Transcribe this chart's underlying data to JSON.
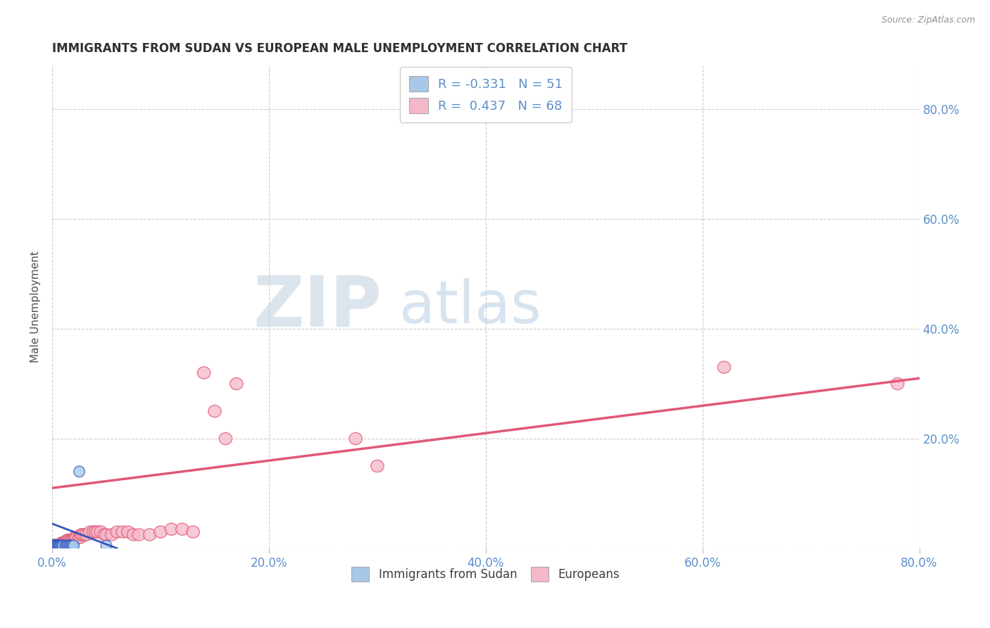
{
  "title": "IMMIGRANTS FROM SUDAN VS EUROPEAN MALE UNEMPLOYMENT CORRELATION CHART",
  "source": "Source: ZipAtlas.com",
  "ylabel": "Male Unemployment",
  "watermark_zip": "ZIP",
  "watermark_atlas": "atlas",
  "xlim": [
    0,
    0.8
  ],
  "ylim": [
    0,
    0.88
  ],
  "xticks": [
    0.0,
    0.2,
    0.4,
    0.6,
    0.8
  ],
  "yticks": [
    0.2,
    0.4,
    0.6,
    0.8
  ],
  "xtick_labels": [
    "0.0%",
    "20.0%",
    "40.0%",
    "60.0%",
    "80.0%"
  ],
  "right_tick_labels": [
    "20.0%",
    "40.0%",
    "60.0%",
    "80.0%"
  ],
  "legend1_R": "-0.331",
  "legend1_N": "51",
  "legend2_R": "0.437",
  "legend2_N": "68",
  "blue_color": "#A8C8E8",
  "pink_color": "#F5B8C8",
  "blue_line_color": "#3355BB",
  "pink_line_color": "#E05878",
  "tick_color": "#5B8FCC",
  "title_color": "#303030",
  "source_color": "#909090",
  "sudan_x": [
    0.001,
    0.001,
    0.001,
    0.001,
    0.001,
    0.001,
    0.001,
    0.001,
    0.001,
    0.001,
    0.002,
    0.002,
    0.002,
    0.002,
    0.002,
    0.002,
    0.002,
    0.002,
    0.003,
    0.003,
    0.003,
    0.003,
    0.003,
    0.003,
    0.004,
    0.004,
    0.004,
    0.004,
    0.005,
    0.005,
    0.005,
    0.006,
    0.006,
    0.007,
    0.007,
    0.008,
    0.008,
    0.009,
    0.01,
    0.01,
    0.012,
    0.013,
    0.014,
    0.015,
    0.016,
    0.017,
    0.018,
    0.019,
    0.02,
    0.025,
    0.05
  ],
  "sudan_y": [
    0.005,
    0.005,
    0.005,
    0.005,
    0.005,
    0.005,
    0.005,
    0.005,
    0.005,
    0.005,
    0.005,
    0.005,
    0.005,
    0.005,
    0.005,
    0.005,
    0.005,
    0.005,
    0.005,
    0.005,
    0.005,
    0.005,
    0.005,
    0.005,
    0.005,
    0.005,
    0.005,
    0.005,
    0.005,
    0.005,
    0.005,
    0.005,
    0.005,
    0.005,
    0.005,
    0.005,
    0.005,
    0.005,
    0.005,
    0.005,
    0.005,
    0.005,
    0.005,
    0.005,
    0.005,
    0.005,
    0.005,
    0.005,
    0.005,
    0.14,
    0.005
  ],
  "european_x": [
    0.001,
    0.001,
    0.001,
    0.002,
    0.002,
    0.002,
    0.002,
    0.003,
    0.003,
    0.003,
    0.004,
    0.004,
    0.004,
    0.005,
    0.005,
    0.005,
    0.006,
    0.006,
    0.007,
    0.007,
    0.008,
    0.009,
    0.01,
    0.011,
    0.012,
    0.013,
    0.014,
    0.015,
    0.016,
    0.017,
    0.018,
    0.019,
    0.02,
    0.021,
    0.022,
    0.023,
    0.025,
    0.026,
    0.027,
    0.028,
    0.03,
    0.032,
    0.035,
    0.038,
    0.04,
    0.042,
    0.045,
    0.048,
    0.05,
    0.055,
    0.06,
    0.065,
    0.07,
    0.075,
    0.08,
    0.09,
    0.1,
    0.11,
    0.12,
    0.13,
    0.14,
    0.15,
    0.16,
    0.17,
    0.28,
    0.3,
    0.62,
    0.78
  ],
  "european_y": [
    0.005,
    0.005,
    0.005,
    0.005,
    0.005,
    0.005,
    0.005,
    0.005,
    0.005,
    0.005,
    0.005,
    0.005,
    0.005,
    0.005,
    0.005,
    0.005,
    0.005,
    0.005,
    0.005,
    0.005,
    0.005,
    0.01,
    0.01,
    0.01,
    0.01,
    0.01,
    0.015,
    0.015,
    0.015,
    0.015,
    0.015,
    0.015,
    0.015,
    0.02,
    0.02,
    0.02,
    0.02,
    0.02,
    0.025,
    0.025,
    0.025,
    0.025,
    0.03,
    0.03,
    0.03,
    0.03,
    0.03,
    0.025,
    0.025,
    0.025,
    0.03,
    0.03,
    0.03,
    0.025,
    0.025,
    0.025,
    0.03,
    0.035,
    0.035,
    0.03,
    0.32,
    0.25,
    0.2,
    0.3,
    0.2,
    0.15,
    0.33,
    0.3
  ],
  "pink_line_x": [
    0.0,
    0.8
  ],
  "pink_line_y": [
    0.11,
    0.31
  ],
  "blue_line_x": [
    0.0,
    0.06
  ],
  "blue_line_y": [
    0.045,
    0.0
  ]
}
